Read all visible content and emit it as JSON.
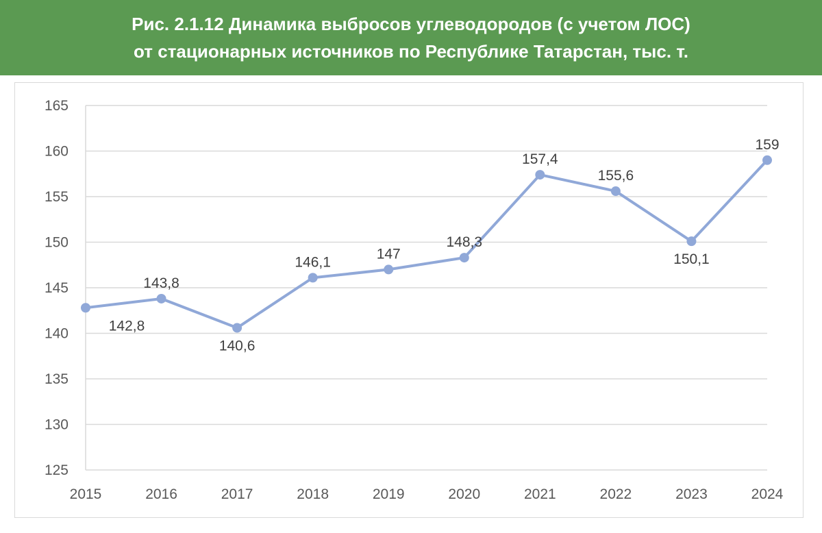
{
  "title": {
    "line1": "Рис. 2.1.12 Динамика выбросов углеводородов (с учетом ЛОС)",
    "line2": "от стационарных источников по Республике Татарстан, тыс. т."
  },
  "colors": {
    "banner": "#5b9a52",
    "line": "#90a8d8",
    "grid": "#d9d9d9"
  },
  "chart_data": {
    "type": "line",
    "title": "Рис. 2.1.12 Динамика выбросов углеводородов (с учетом ЛОС) от стационарных источников по Республике Татарстан, тыс. т.",
    "categories": [
      "2015",
      "2016",
      "2017",
      "2018",
      "2019",
      "2020",
      "2021",
      "2022",
      "2023",
      "2024"
    ],
    "series": [
      {
        "values": [
          142.8,
          143.8,
          140.6,
          146.1,
          147,
          148.3,
          157.4,
          155.6,
          150.1,
          159
        ],
        "labels": [
          "142,8",
          "143,8",
          "140,6",
          "146,1",
          "147",
          "148,3",
          "157,4",
          "155,6",
          "150,1",
          "159"
        ],
        "label_positions": [
          "below",
          "above",
          "below",
          "above",
          "above",
          "above",
          "above",
          "above",
          "below",
          "above"
        ]
      }
    ],
    "ylim": [
      125,
      165
    ],
    "yticks": [
      125,
      130,
      135,
      140,
      145,
      150,
      155,
      160,
      165
    ],
    "xlabel": "",
    "ylabel": "",
    "grid": true,
    "legend": "none"
  }
}
